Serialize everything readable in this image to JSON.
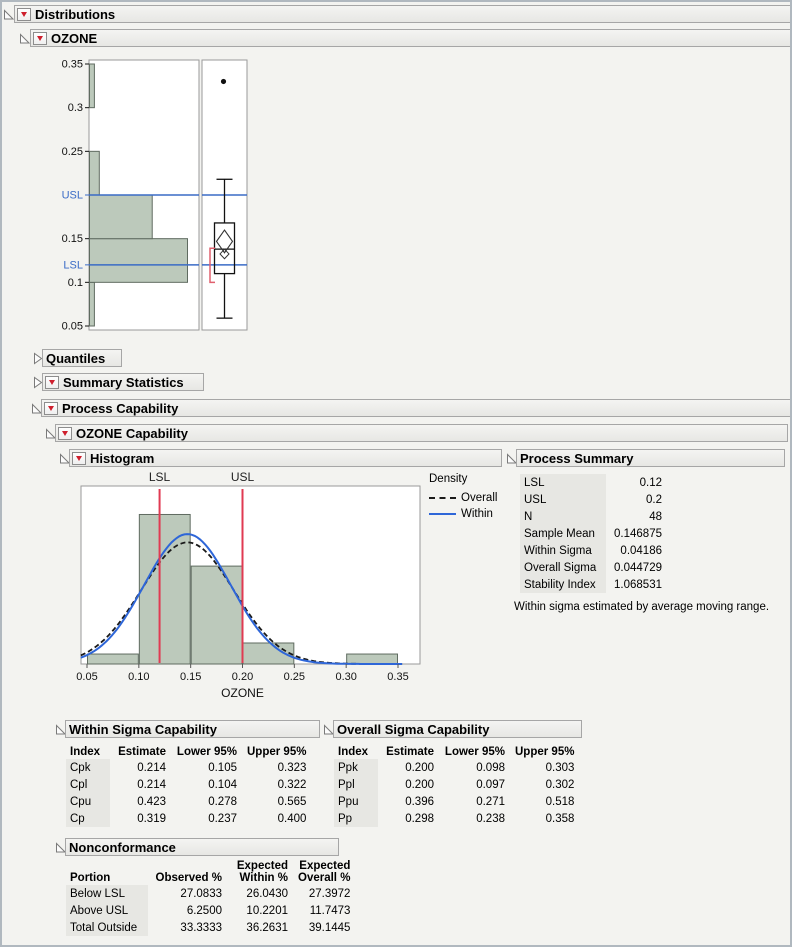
{
  "outline": {
    "distributions": "Distributions",
    "ozone": "OZONE",
    "quantiles": "Quantiles",
    "summary_statistics": "Summary Statistics",
    "process_capability": "Process Capability",
    "ozone_capability": "OZONE Capability",
    "histogram": "Histogram",
    "process_summary": "Process Summary",
    "within_sigma_capability": "Within Sigma Capability",
    "overall_sigma_capability": "Overall Sigma Capability",
    "nonconformance": "Nonconformance"
  },
  "colors": {
    "bar_fill": "#bcc9bb",
    "bar_stroke": "#5f6b60",
    "spec_line_blue": "#3a6bc6",
    "spec_label_blue": "#3a6bc6",
    "spec_line_red": "#e03a52",
    "within_curve_blue": "#2e66d8",
    "overall_curve_black": "#1a1a1a",
    "bracket_red": "#e0606e",
    "row_header_bg": "#e7e7e3",
    "frame_stroke": "#9a9a9a"
  },
  "chart_data": [
    {
      "name": "ozone-distribution-histogram-boxplot",
      "type": "bar",
      "subtype": "histogram-with-outlier-boxplot",
      "orientation": "horizontal-bars-vertical-axis",
      "value_axis": {
        "min": 0.05,
        "max": 0.35,
        "labels": [
          {
            "text": "0.35",
            "value": 0.35,
            "spec": false
          },
          {
            "text": "0.3",
            "value": 0.3,
            "spec": false
          },
          {
            "text": "0.25",
            "value": 0.25,
            "spec": false
          },
          {
            "text": "USL",
            "value": 0.2,
            "spec": true
          },
          {
            "text": "0.15",
            "value": 0.15,
            "spec": false
          },
          {
            "text": "LSL",
            "value": 0.12,
            "spec": true
          },
          {
            "text": "0.1",
            "value": 0.1,
            "spec": false
          },
          {
            "text": "0.05",
            "value": 0.05,
            "spec": false
          }
        ]
      },
      "spec_limits": {
        "lsl": 0.12,
        "usl": 0.2
      },
      "bins": [
        {
          "lo": 0.05,
          "hi": 0.1,
          "rel": 0.05
        },
        {
          "lo": 0.1,
          "hi": 0.15,
          "rel": 1.0
        },
        {
          "lo": 0.15,
          "hi": 0.2,
          "rel": 0.64
        },
        {
          "lo": 0.2,
          "hi": 0.25,
          "rel": 0.1
        },
        {
          "lo": 0.25,
          "hi": 0.3,
          "rel": 0.0
        },
        {
          "lo": 0.3,
          "hi": 0.35,
          "rel": 0.05
        }
      ],
      "boxplot": {
        "outliers": [
          0.33
        ],
        "whisker_high": 0.218,
        "q3": 0.168,
        "median": 0.138,
        "q1": 0.11,
        "whisker_low": 0.059,
        "mean": 0.146875,
        "diamond_half_height": 0.013,
        "overlap_mark_center": 0.1325,
        "overlap_mark_half_height": 0.0055,
        "shortest_half_bracket": [
          0.1,
          0.139
        ]
      }
    },
    {
      "name": "ozone-capability-histogram",
      "type": "bar",
      "subtype": "histogram-with-density-curves",
      "xlabel": "OZONE",
      "x_min": 0.05,
      "x_max": 0.35,
      "x_ticks": [
        "0.05",
        "0.10",
        "0.15",
        "0.20",
        "0.25",
        "0.30",
        "0.35"
      ],
      "bins": [
        {
          "lo": 0.05,
          "hi": 0.1,
          "rel": 0.056
        },
        {
          "lo": 0.1,
          "hi": 0.15,
          "rel": 0.84
        },
        {
          "lo": 0.15,
          "hi": 0.2,
          "rel": 0.55
        },
        {
          "lo": 0.2,
          "hi": 0.25,
          "rel": 0.118
        },
        {
          "lo": 0.25,
          "hi": 0.3,
          "rel": 0.0
        },
        {
          "lo": 0.3,
          "hi": 0.35,
          "rel": 0.056
        }
      ],
      "spec_limits": {
        "lsl": {
          "label": "LSL",
          "value": 0.12
        },
        "usl": {
          "label": "USL",
          "value": 0.2
        }
      },
      "curves": [
        {
          "name": "Overall",
          "mean": 0.146875,
          "sigma": 0.044729,
          "dash": true
        },
        {
          "name": "Within",
          "mean": 0.146875,
          "sigma": 0.04186,
          "dash": false
        }
      ],
      "curve_peak_rel": 0.73,
      "legend": {
        "title": "Density",
        "entries": [
          {
            "label": "Overall",
            "style": "dashed-black"
          },
          {
            "label": "Within",
            "style": "solid-blue"
          }
        ]
      }
    }
  ],
  "process_summary": {
    "rows": [
      [
        "LSL",
        "0.12"
      ],
      [
        "USL",
        "0.2"
      ],
      [
        "N",
        "48"
      ],
      [
        "Sample Mean",
        "0.146875"
      ],
      [
        "Within Sigma",
        "0.04186"
      ],
      [
        "Overall Sigma",
        "0.044729"
      ],
      [
        "Stability Index",
        "1.068531"
      ]
    ],
    "footnote": "Within sigma estimated by average moving range."
  },
  "within_sigma_table": {
    "headers": [
      "Index",
      "Estimate",
      "Lower 95%",
      "Upper 95%"
    ],
    "rows": [
      [
        "Cpk",
        "0.214",
        "0.105",
        "0.323"
      ],
      [
        "Cpl",
        "0.214",
        "0.104",
        "0.322"
      ],
      [
        "Cpu",
        "0.423",
        "0.278",
        "0.565"
      ],
      [
        "Cp",
        "0.319",
        "0.237",
        "0.400"
      ]
    ]
  },
  "overall_sigma_table": {
    "headers": [
      "Index",
      "Estimate",
      "Lower 95%",
      "Upper 95%"
    ],
    "rows": [
      [
        "Ppk",
        "0.200",
        "0.098",
        "0.303"
      ],
      [
        "Ppl",
        "0.200",
        "0.097",
        "0.302"
      ],
      [
        "Ppu",
        "0.396",
        "0.271",
        "0.518"
      ],
      [
        "Pp",
        "0.298",
        "0.238",
        "0.358"
      ]
    ]
  },
  "nonconformance_table": {
    "headers": [
      [
        "",
        "Portion"
      ],
      [
        "",
        "Observed %"
      ],
      [
        "Expected",
        "Within %"
      ],
      [
        "Expected",
        "Overall %"
      ]
    ],
    "rows": [
      [
        "Below LSL",
        "27.0833",
        "26.0430",
        "27.3972"
      ],
      [
        "Above USL",
        "6.2500",
        "10.2201",
        "11.7473"
      ],
      [
        "Total Outside",
        "33.3333",
        "36.2631",
        "39.1445"
      ]
    ]
  }
}
